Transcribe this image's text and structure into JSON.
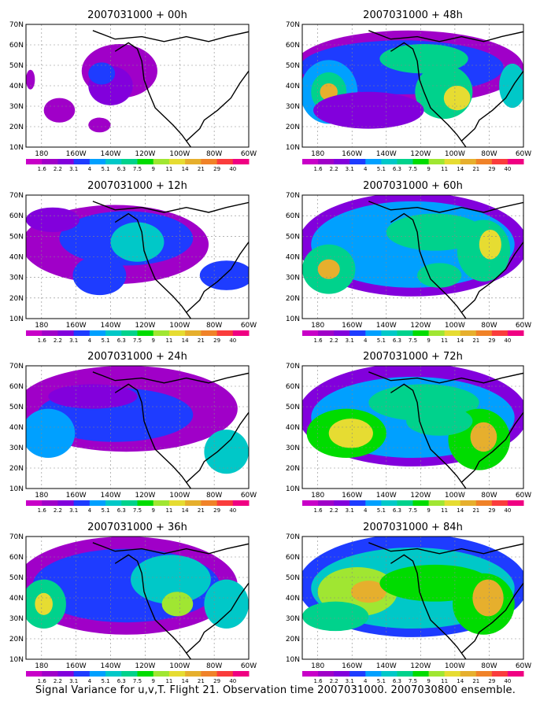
{
  "panels": [
    {
      "title": "2007031000 + 00h"
    },
    {
      "title": "2007031000 + 48h"
    },
    {
      "title": "2007031000 + 12h"
    },
    {
      "title": "2007031000 + 60h"
    },
    {
      "title": "2007031000 + 24h"
    },
    {
      "title": "2007031000 + 72h"
    },
    {
      "title": "2007031000 + 36h"
    },
    {
      "title": "2007031000 + 84h"
    }
  ],
  "lat_labels": [
    "10N",
    "20N",
    "30N",
    "40N",
    "50N",
    "60N",
    "70N"
  ],
  "lon_labels": [
    "180",
    "160W",
    "140W",
    "120W",
    "100W",
    "80W",
    "60W"
  ],
  "colorbar": {
    "labels": [
      "1.6",
      "2.2",
      "3.1",
      "4",
      "5.1",
      "6.3",
      "7.5",
      "9",
      "11",
      "14",
      "21",
      "29",
      "40"
    ],
    "colors": [
      "#a000c8",
      "#8200dc",
      "#1e3cff",
      "#00a0ff",
      "#00c8c8",
      "#00d28c",
      "#00dc00",
      "#a0e632",
      "#e6dc32",
      "#e6af2d",
      "#f08228",
      "#fa3c3c",
      "#f00082"
    ]
  },
  "caption": "Signal Variance for u,v,T. Flight 21. Observation time 2007031000. 2007030800 ensemble."
}
